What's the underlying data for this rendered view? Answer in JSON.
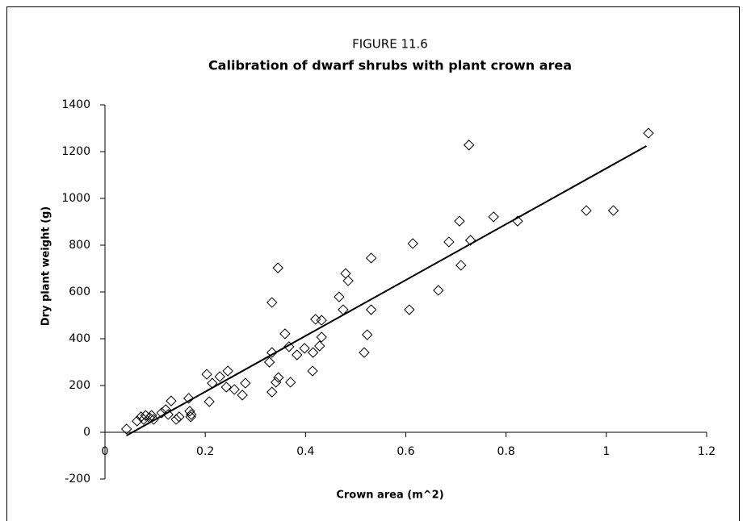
{
  "chart_data": {
    "type": "scatter",
    "supertitle": "FIGURE 11.6",
    "title": "Calibration of dwarf shrubs with plant crown area",
    "x_label": "Crown area (m^2)",
    "y_label": "Dry plant weight (g)",
    "xlim": [
      0,
      1.2
    ],
    "xticks": [
      0,
      0.2,
      0.4,
      0.6,
      0.8,
      1,
      1.2
    ],
    "ylim": [
      -200,
      1400
    ],
    "yticks": [
      -200,
      0,
      200,
      400,
      600,
      800,
      1000,
      1200,
      1400
    ],
    "color": "#000000",
    "x": [
      0.043,
      0.064,
      0.072,
      0.081,
      0.077,
      0.089,
      0.097,
      0.093,
      0.113,
      0.121,
      0.126,
      0.132,
      0.142,
      0.148,
      0.167,
      0.169,
      0.172,
      0.171,
      0.203,
      0.208,
      0.214,
      0.229,
      0.242,
      0.245,
      0.258,
      0.274,
      0.28,
      0.328,
      0.333,
      0.333,
      0.333,
      0.341,
      0.346,
      0.345,
      0.359,
      0.367,
      0.37,
      0.383,
      0.398,
      0.415,
      0.414,
      0.42,
      0.428,
      0.432,
      0.432,
      0.467,
      0.475,
      0.48,
      0.485,
      0.517,
      0.523,
      0.531,
      0.531,
      0.607,
      0.614,
      0.665,
      0.686,
      0.707,
      0.71,
      0.726,
      0.729,
      0.775,
      0.823,
      0.96,
      1.014,
      1.084
    ],
    "values": [
      14,
      48,
      66,
      72,
      55,
      62,
      55,
      72,
      83,
      97,
      76,
      134,
      55,
      66,
      145,
      90,
      76,
      66,
      248,
      131,
      210,
      238,
      193,
      262,
      183,
      159,
      210,
      300,
      341,
      555,
      172,
      214,
      234,
      703,
      421,
      366,
      214,
      331,
      359,
      341,
      262,
      483,
      369,
      479,
      407,
      579,
      524,
      679,
      648,
      341,
      417,
      745,
      524,
      524,
      807,
      607,
      814,
      903,
      714,
      1228,
      821,
      921,
      903,
      948,
      948,
      1279
    ],
    "trendline": {
      "x": [
        0.043,
        1.08
      ],
      "values": [
        -14,
        1224
      ]
    }
  }
}
